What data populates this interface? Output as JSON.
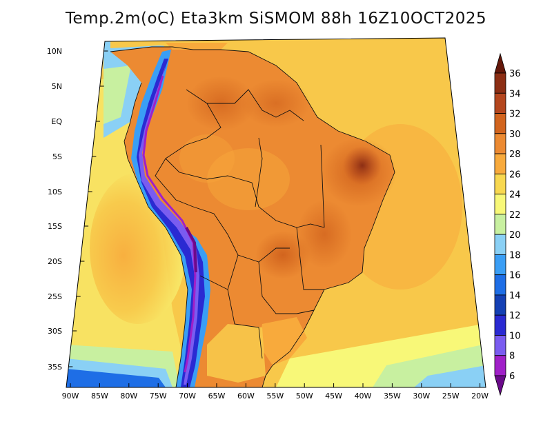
{
  "title": "Temp.2m(oC) Eta3km SiSMOM 88h 16Z10OCT2025",
  "map": {
    "lon_labels": [
      "90W",
      "85W",
      "80W",
      "75W",
      "70W",
      "65W",
      "60W",
      "55W",
      "50W",
      "45W",
      "40W",
      "35W",
      "30W",
      "25W",
      "20W"
    ],
    "lat_labels": [
      "10N",
      "5N",
      "EQ",
      "5S",
      "10S",
      "15S",
      "20S",
      "25S",
      "30S",
      "35S"
    ]
  },
  "colorbar": {
    "levels": [
      "6",
      "8",
      "10",
      "12",
      "14",
      "16",
      "18",
      "20",
      "22",
      "24",
      "26",
      "28",
      "30",
      "32",
      "34",
      "36"
    ],
    "colors": [
      "#6a0a8a",
      "#a020c8",
      "#7a5cf0",
      "#2a2ad2",
      "#1440b4",
      "#1e6ee6",
      "#3a9ef5",
      "#8ad0f5",
      "#c8f0a0",
      "#f8f878",
      "#f8d850",
      "#f8aa3c",
      "#ec8a32",
      "#d2641e",
      "#b4461e",
      "#8c2e14",
      "#64180a"
    ]
  }
}
